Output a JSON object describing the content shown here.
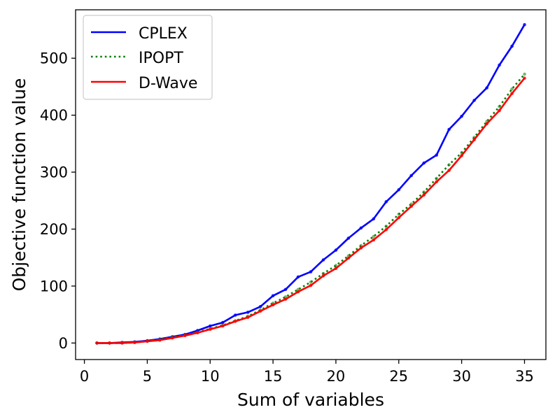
{
  "chart_data": {
    "type": "line",
    "title": "",
    "xlabel": "Sum of variables",
    "ylabel": "Objective function value",
    "xlim": [
      -0.7,
      36.7
    ],
    "ylim": [
      -29,
      585
    ],
    "xticks": [
      0,
      5,
      10,
      15,
      20,
      25,
      30,
      35
    ],
    "yticks": [
      0,
      100,
      200,
      300,
      400,
      500
    ],
    "xtick_labels": [
      "0",
      "5",
      "10",
      "15",
      "20",
      "25",
      "30",
      "35"
    ],
    "ytick_labels": [
      "0",
      "100",
      "200",
      "300",
      "400",
      "500"
    ],
    "grid": false,
    "legend_position": "top-left",
    "x": [
      1,
      2,
      3,
      4,
      5,
      6,
      7,
      8,
      9,
      10,
      11,
      12,
      13,
      14,
      15,
      16,
      17,
      18,
      19,
      20,
      21,
      22,
      23,
      24,
      25,
      26,
      27,
      28,
      29,
      30,
      31,
      32,
      33,
      34,
      35
    ],
    "series": [
      {
        "name": "CPLEX",
        "color": "#0000ff",
        "style": "solid",
        "values": [
          0,
          0,
          1,
          2,
          4,
          7,
          11,
          15,
          22,
          30,
          36,
          49,
          54,
          64,
          83,
          94,
          116,
          125,
          146,
          163,
          184,
          202,
          218,
          248,
          269,
          294,
          316,
          330,
          375,
          398,
          426,
          448,
          488,
          521,
          559
        ]
      },
      {
        "name": "IPOPT",
        "color": "#008000",
        "style": "dotted",
        "values": [
          0,
          0,
          0,
          1,
          3,
          6,
          10,
          14,
          19,
          25,
          31,
          39,
          47,
          58,
          70,
          81,
          94,
          107,
          122,
          136,
          153,
          171,
          187,
          205,
          226,
          244,
          265,
          289,
          313,
          334,
          361,
          389,
          415,
          446,
          472
        ]
      },
      {
        "name": "D-Wave",
        "color": "#ff0000",
        "style": "solid",
        "values": [
          0,
          0,
          0,
          1,
          3,
          5,
          9,
          13,
          18,
          24,
          30,
          38,
          45,
          56,
          67,
          77,
          90,
          101,
          118,
          131,
          149,
          167,
          181,
          199,
          220,
          240,
          260,
          283,
          303,
          329,
          357,
          385,
          408,
          438,
          465
        ]
      }
    ]
  }
}
